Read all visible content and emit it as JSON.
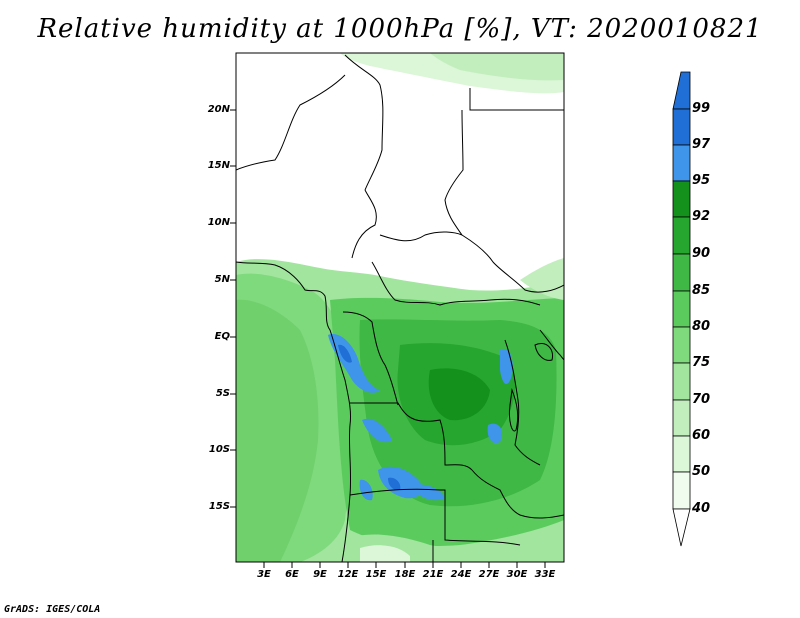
{
  "title": "Relative humidity at 1000hPa [%], VT: 2020010821",
  "footer": "GrADS: IGES/COLA",
  "map": {
    "lat_labels": [
      "20N",
      "15N",
      "10N",
      "5N",
      "EQ",
      "5S",
      "10S",
      "15S"
    ],
    "lon_labels": [
      "3E",
      "6E",
      "9E",
      "12E",
      "15E",
      "18E",
      "21E",
      "24E",
      "27E",
      "30E",
      "33E"
    ]
  },
  "colorbar": {
    "levels": [
      "99",
      "97",
      "95",
      "92",
      "90",
      "85",
      "80",
      "75",
      "70",
      "60",
      "50",
      "40"
    ],
    "colors": {
      "c97_99": "#1f6fd6",
      "c95_97": "#3f95ea",
      "c92_95": "#13911c",
      "c90_92": "#26a52f",
      "c85_90": "#3fb845",
      "c80_85": "#5ccb5e",
      "c75_80": "#7fd97d",
      "c70_75": "#a2e59e",
      "c60_70": "#c2eebd",
      "c50_60": "#dcf6d8",
      "c40_50": "#f0fcee"
    }
  }
}
